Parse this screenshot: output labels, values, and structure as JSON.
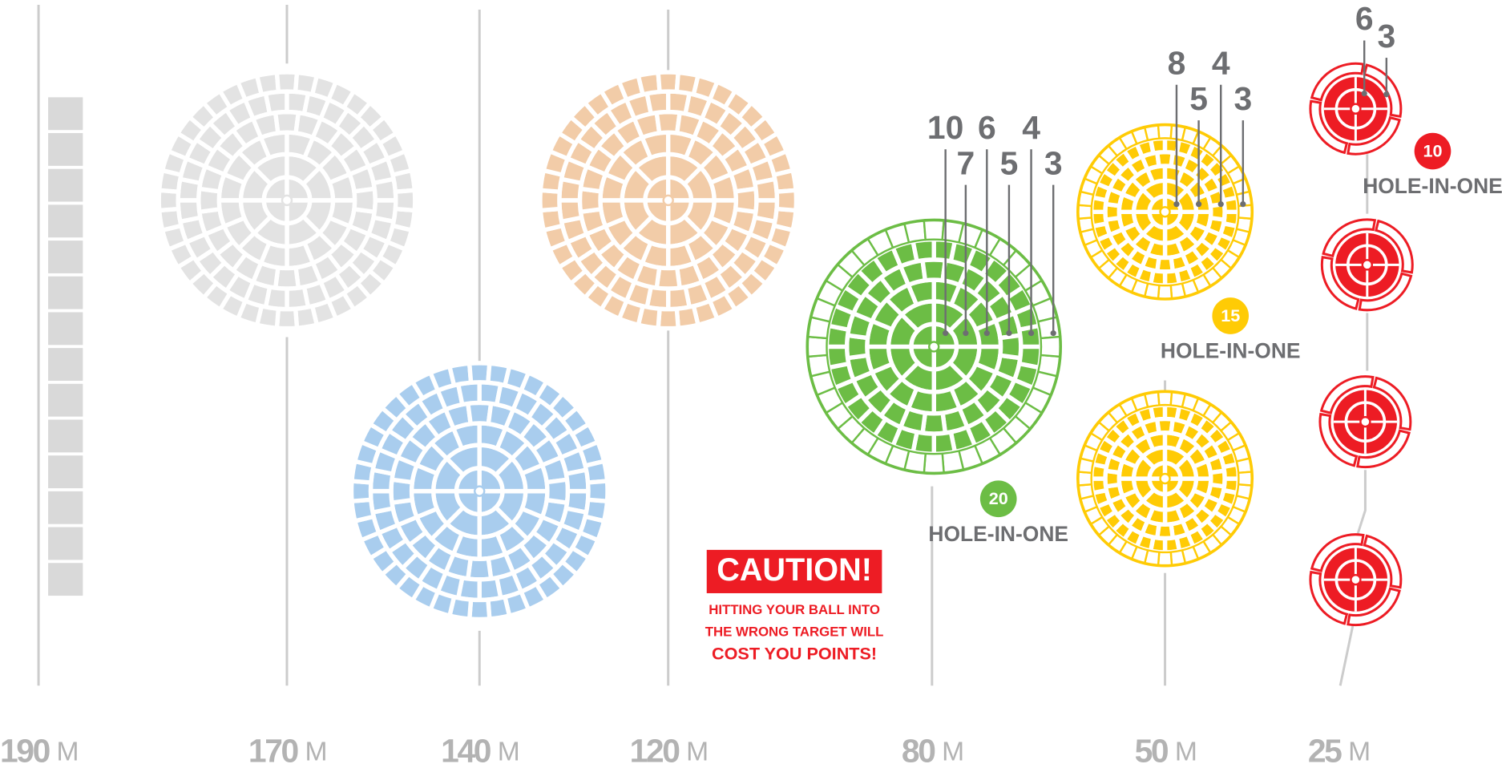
{
  "distances": [
    {
      "value": "190",
      "unit": "M"
    },
    {
      "value": "170",
      "unit": "M"
    },
    {
      "value": "140",
      "unit": "M"
    },
    {
      "value": "120",
      "unit": "M"
    },
    {
      "value": "80",
      "unit": "M"
    },
    {
      "value": "50",
      "unit": "M"
    },
    {
      "value": "25",
      "unit": "M"
    }
  ],
  "targets": [
    {
      "points": [
        10,
        7,
        6,
        5,
        4,
        3
      ],
      "hole_in_one": {
        "points": 20,
        "label": "HOLE-IN-ONE"
      }
    },
    {
      "points": [
        8,
        5,
        4,
        3
      ],
      "hole_in_one": {
        "points": 15,
        "label": "HOLE-IN-ONE"
      }
    },
    {
      "points": [
        6,
        3
      ],
      "hole_in_one": {
        "points": 10,
        "label": "HOLE-IN-ONE"
      }
    }
  ],
  "caution": {
    "title": "CAUTION!",
    "lines": [
      "HITTING YOUR BALL INTO",
      "THE WRONG TARGET WILL",
      "COST YOU POINTS!"
    ]
  }
}
